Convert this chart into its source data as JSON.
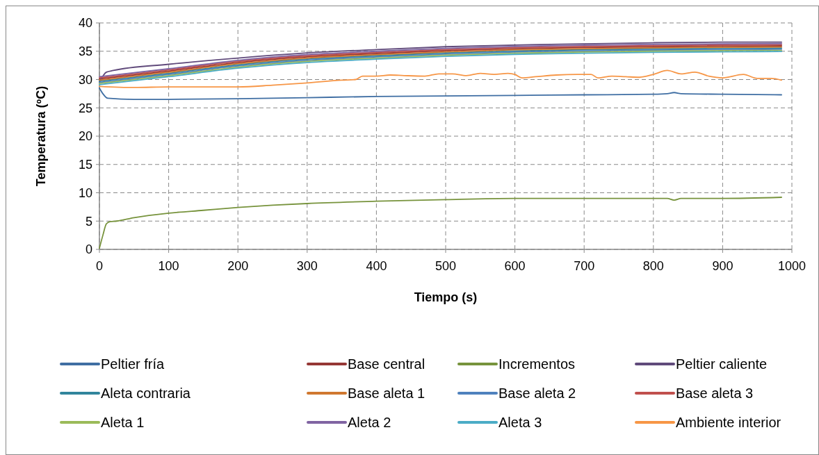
{
  "chart_data": {
    "type": "line",
    "xlabel": "Tiempo (s)",
    "ylabel": "Temperatura  (ºC)",
    "xlim": [
      0,
      1000
    ],
    "xticks": [
      0,
      100,
      200,
      300,
      400,
      500,
      600,
      700,
      800,
      900,
      1000
    ],
    "ylim": [
      0,
      40
    ],
    "yticks": [
      0,
      5,
      10,
      15,
      20,
      25,
      30,
      35,
      40
    ],
    "grid": true,
    "legend": "bottom",
    "marker": "none",
    "line_style": "solid",
    "series": [
      {
        "name": "Peltier fría",
        "color": "#3f6ea3",
        "x": [
          0,
          5,
          12,
          50,
          100,
          200,
          300,
          400,
          500,
          600,
          700,
          800,
          820,
          830,
          840,
          900,
          985
        ],
        "values": [
          28.5,
          27.5,
          26.7,
          26.5,
          26.5,
          26.6,
          26.8,
          27.0,
          27.1,
          27.2,
          27.3,
          27.4,
          27.5,
          27.7,
          27.5,
          27.4,
          27.3
        ]
      },
      {
        "name": "Base central",
        "color": "#953735",
        "x": [
          0,
          100,
          200,
          300,
          400,
          500,
          600,
          700,
          800,
          900,
          985
        ],
        "values": [
          30.1,
          31.5,
          33.0,
          34.0,
          34.6,
          35.1,
          35.45,
          35.65,
          35.8,
          35.9,
          35.95
        ]
      },
      {
        "name": "Incrementos",
        "color": "#77933c",
        "x": [
          0,
          5,
          10,
          15,
          25,
          50,
          100,
          150,
          200,
          250,
          300,
          400,
          500,
          600,
          700,
          800,
          820,
          830,
          840,
          900,
          985
        ],
        "values": [
          0.2,
          2.5,
          4.5,
          4.9,
          5.0,
          5.6,
          6.4,
          6.9,
          7.4,
          7.8,
          8.1,
          8.5,
          8.8,
          9.0,
          9.0,
          9.0,
          9.0,
          8.7,
          9.0,
          9.0,
          9.2
        ]
      },
      {
        "name": "Peltier caliente",
        "color": "#604a7b",
        "x": [
          0,
          10,
          20,
          100,
          200,
          300,
          400,
          500,
          600,
          700,
          800,
          900,
          985
        ],
        "values": [
          29.5,
          31.3,
          31.6,
          32.7,
          33.8,
          34.7,
          35.3,
          35.8,
          36.1,
          36.3,
          36.5,
          36.6,
          36.6
        ]
      },
      {
        "name": "Aleta contraria",
        "color": "#31859c",
        "x": [
          0,
          100,
          200,
          300,
          400,
          500,
          600,
          700,
          800,
          900,
          985
        ],
        "values": [
          29.7,
          31.1,
          32.6,
          33.6,
          34.2,
          34.7,
          35.05,
          35.25,
          35.4,
          35.5,
          35.55
        ]
      },
      {
        "name": "Base aleta 1",
        "color": "#d0782f",
        "x": [
          0,
          100,
          200,
          300,
          400,
          500,
          600,
          700,
          800,
          900,
          985
        ],
        "values": [
          29.9,
          31.3,
          32.8,
          33.8,
          34.4,
          34.9,
          35.25,
          35.45,
          35.6,
          35.7,
          35.75
        ]
      },
      {
        "name": "Base aleta 2",
        "color": "#4f81bd",
        "x": [
          0,
          100,
          200,
          300,
          400,
          500,
          600,
          700,
          800,
          900,
          985
        ],
        "values": [
          29.5,
          30.9,
          32.4,
          33.4,
          34.0,
          34.5,
          34.85,
          35.05,
          35.2,
          35.3,
          35.35
        ]
      },
      {
        "name": "Base aleta 3",
        "color": "#c0504d",
        "x": [
          0,
          100,
          200,
          300,
          400,
          500,
          600,
          700,
          800,
          900,
          985
        ],
        "values": [
          30.3,
          31.7,
          33.2,
          34.2,
          34.8,
          35.3,
          35.65,
          35.85,
          36.0,
          36.1,
          36.15
        ]
      },
      {
        "name": "Aleta 1",
        "color": "#9bbb59",
        "x": [
          0,
          100,
          200,
          300,
          400,
          500,
          600,
          700,
          800,
          900,
          985
        ],
        "values": [
          29.3,
          30.7,
          32.2,
          33.2,
          33.8,
          34.3,
          34.65,
          34.85,
          35.0,
          35.1,
          35.15
        ]
      },
      {
        "name": "Aleta 2",
        "color": "#8064a2",
        "x": [
          0,
          100,
          200,
          300,
          400,
          500,
          600,
          700,
          800,
          900,
          985
        ],
        "values": [
          30.5,
          31.9,
          33.4,
          34.4,
          35.0,
          35.5,
          35.85,
          36.05,
          36.2,
          36.3,
          36.35
        ]
      },
      {
        "name": "Aleta 3",
        "color": "#4bacc6",
        "x": [
          0,
          100,
          200,
          300,
          400,
          500,
          600,
          700,
          800,
          900,
          985
        ],
        "values": [
          29.1,
          30.5,
          32.0,
          33.0,
          33.6,
          34.1,
          34.45,
          34.65,
          34.8,
          34.9,
          34.95
        ]
      },
      {
        "name": "Ambiente interior",
        "color": "#f79646",
        "x": [
          0,
          50,
          100,
          200,
          250,
          300,
          350,
          370,
          380,
          400,
          420,
          440,
          470,
          490,
          510,
          530,
          550,
          570,
          590,
          600,
          610,
          630,
          660,
          690,
          710,
          720,
          740,
          760,
          780,
          800,
          820,
          840,
          860,
          880,
          900,
          930,
          950,
          970,
          985
        ],
        "values": [
          28.8,
          28.6,
          28.7,
          28.7,
          29.0,
          29.4,
          29.9,
          30.0,
          30.6,
          30.6,
          30.8,
          30.7,
          30.6,
          31.0,
          31.0,
          30.7,
          31.1,
          30.9,
          31.1,
          30.9,
          30.3,
          30.5,
          30.8,
          30.9,
          30.9,
          30.3,
          30.6,
          30.5,
          30.4,
          30.9,
          31.6,
          31.0,
          31.3,
          30.6,
          30.3,
          30.9,
          30.2,
          30.2,
          29.9
        ]
      }
    ]
  }
}
